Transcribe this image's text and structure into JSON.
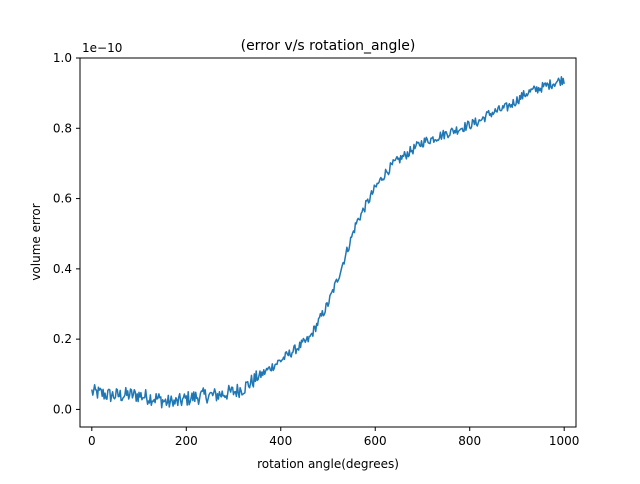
{
  "chart_data": {
    "type": "line",
    "title": "(error v/s rotation_angle)",
    "xlabel": "rotation angle(degrees)",
    "ylabel": "volume error",
    "y_offset_text": "1e−10",
    "xlim": [
      -25,
      1025
    ],
    "ylim": [
      -0.05,
      1.0
    ],
    "x_ticks": [
      0,
      200,
      400,
      600,
      800,
      1000
    ],
    "x_tick_labels": [
      "0",
      "200",
      "400",
      "600",
      "800",
      "1000"
    ],
    "y_ticks": [
      0.0,
      0.2,
      0.4,
      0.6,
      0.8,
      1.0
    ],
    "y_tick_labels": [
      "0.0",
      "0.2",
      "0.4",
      "0.6",
      "0.8",
      "1.0"
    ],
    "grid": false,
    "legend": "none",
    "series": [
      {
        "color": "#1f77b4",
        "x": [
          0,
          20,
          40,
          60,
          80,
          100,
          120,
          140,
          160,
          180,
          200,
          220,
          240,
          260,
          280,
          300,
          320,
          340,
          360,
          380,
          400,
          420,
          440,
          460,
          480,
          500,
          520,
          540,
          560,
          580,
          600,
          620,
          640,
          660,
          680,
          700,
          720,
          740,
          760,
          780,
          800,
          820,
          840,
          860,
          880,
          900,
          920,
          940,
          960,
          980,
          1000
        ],
        "y": [
          0.05,
          0.045,
          0.04,
          0.04,
          0.042,
          0.04,
          0.035,
          0.03,
          0.02,
          0.02,
          0.03,
          0.035,
          0.04,
          0.04,
          0.045,
          0.05,
          0.06,
          0.08,
          0.1,
          0.12,
          0.14,
          0.16,
          0.18,
          0.2,
          0.25,
          0.3,
          0.37,
          0.45,
          0.53,
          0.58,
          0.63,
          0.67,
          0.7,
          0.72,
          0.74,
          0.76,
          0.77,
          0.78,
          0.79,
          0.8,
          0.81,
          0.82,
          0.84,
          0.85,
          0.86,
          0.88,
          0.9,
          0.91,
          0.92,
          0.93,
          0.94
        ]
      }
    ]
  }
}
